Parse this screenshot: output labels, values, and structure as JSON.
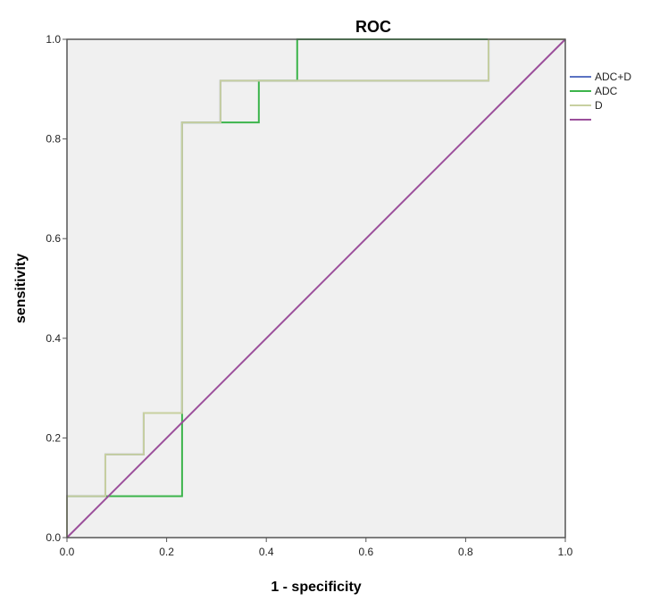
{
  "chart_data": {
    "type": "line",
    "title": "ROC",
    "xlabel": "1 - specificity",
    "ylabel": "sensitivity",
    "xlim": [
      0,
      1
    ],
    "ylim": [
      0,
      1
    ],
    "x_ticks": [
      "0.0",
      "0.2",
      "0.4",
      "0.6",
      "0.8",
      "1.0"
    ],
    "y_ticks": [
      "0.0",
      "0.2",
      "0.4",
      "0.6",
      "0.8",
      "1.0"
    ],
    "grid": false,
    "legend_position": "right",
    "plot_background": "#f0f0f0",
    "series": [
      {
        "name": "ADC+D",
        "color": "#5b73c2",
        "x": [
          0,
          0,
          0.077,
          0.077,
          0.154,
          0.154,
          0.231,
          0.231,
          0.308,
          0.308,
          0.846,
          0.846,
          1
        ],
        "y": [
          0,
          0.083,
          0.083,
          0.167,
          0.167,
          0.25,
          0.25,
          0.833,
          0.833,
          0.917,
          0.917,
          1,
          1
        ]
      },
      {
        "name": "ADC",
        "color": "#3cb44b",
        "x": [
          0,
          0,
          0.231,
          0.231,
          0.385,
          0.385,
          0.462,
          0.462,
          1
        ],
        "y": [
          0,
          0.083,
          0.083,
          0.833,
          0.833,
          0.917,
          0.917,
          1,
          1
        ]
      },
      {
        "name": "D",
        "color": "#c8d0a0",
        "x": [
          0,
          0,
          0.077,
          0.077,
          0.154,
          0.154,
          0.231,
          0.231,
          0.308,
          0.308,
          0.846,
          0.846,
          1
        ],
        "y": [
          0,
          0.083,
          0.083,
          0.167,
          0.167,
          0.25,
          0.25,
          0.833,
          0.833,
          0.917,
          0.917,
          1,
          1
        ]
      },
      {
        "name": "",
        "color": "#9b4f9b",
        "x": [
          0,
          1
        ],
        "y": [
          0,
          1
        ]
      }
    ]
  }
}
